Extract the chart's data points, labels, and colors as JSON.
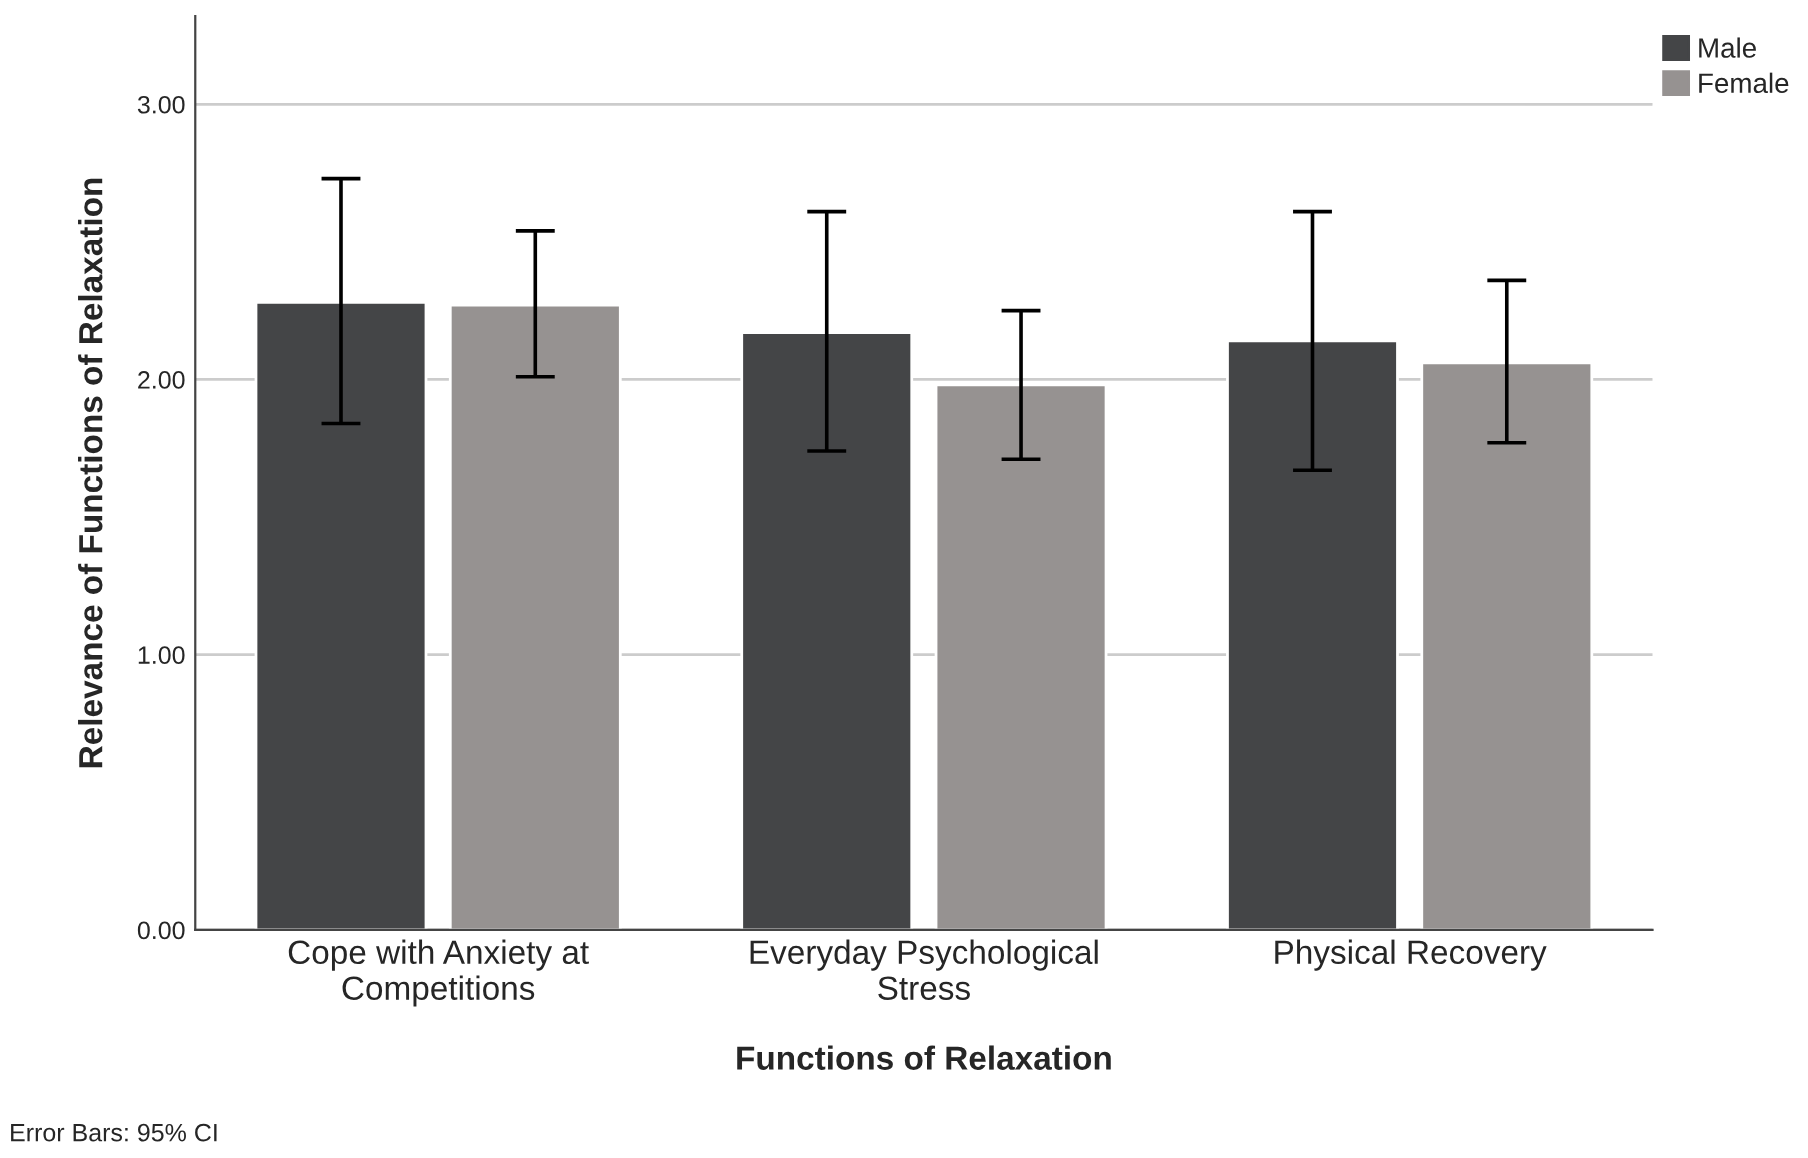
{
  "chart_data": {
    "type": "bar",
    "xlabel": "Functions of Relaxation",
    "ylabel": "Relevance of Functions of Relaxation",
    "categories": [
      "Cope with Anxiety at\nCompetitions",
      "Everyday Psychological\nStress",
      "Physical Recovery"
    ],
    "series": [
      {
        "name": "Male",
        "color": "#444547",
        "values": [
          2.28,
          2.17,
          2.14
        ],
        "errors": [
          [
            1.84,
            2.73
          ],
          [
            1.74,
            2.61
          ],
          [
            1.67,
            2.61
          ]
        ]
      },
      {
        "name": "Female",
        "color": "#969291",
        "values": [
          2.27,
          1.98,
          2.06
        ],
        "errors": [
          [
            2.01,
            2.54
          ],
          [
            1.71,
            2.25
          ],
          [
            1.77,
            2.36
          ]
        ]
      }
    ],
    "ylim": [
      0,
      3.32
    ],
    "yticks": [
      {
        "value": 0,
        "label": "0.00"
      },
      {
        "value": 1,
        "label": "1.00"
      },
      {
        "value": 2,
        "label": "2.00"
      },
      {
        "value": 3,
        "label": "3.00"
      }
    ],
    "grid": "y",
    "legend": "top right",
    "annotations": [
      "Error Bars: 95% CI"
    ]
  }
}
